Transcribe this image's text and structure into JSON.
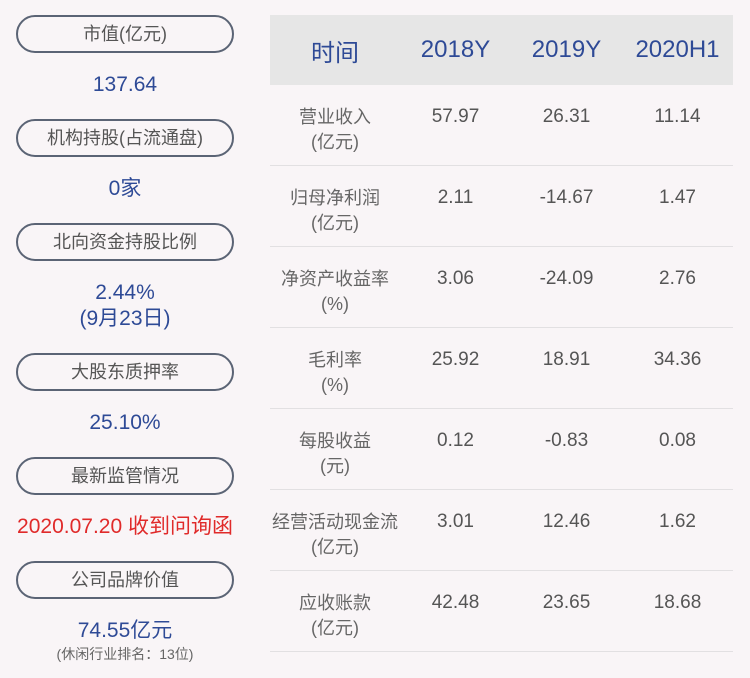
{
  "left": [
    {
      "label": "市值(亿元)",
      "value": "137.64"
    },
    {
      "label": "机构持股(占流通盘)",
      "value": "0家"
    },
    {
      "label": "北向资金持股比例",
      "value": "2.44%",
      "value2": "(9月23日)"
    },
    {
      "label": "大股东质押率",
      "value": "25.10%"
    },
    {
      "label": "最新监管情况",
      "value": "2020.07.20 收到问询函"
    },
    {
      "label": "公司品牌价值",
      "value": "74.55亿元",
      "value2": "(休闲行业排名：13位)"
    }
  ],
  "table": {
    "headers": [
      "时间",
      "2018Y",
      "2019Y",
      "2020H1"
    ],
    "rows": [
      {
        "name": "营业收入",
        "unit": "(亿元)",
        "values": [
          "57.97",
          "26.31",
          "11.14"
        ]
      },
      {
        "name": "归母净利润",
        "unit": "(亿元)",
        "values": [
          "2.11",
          "-14.67",
          "1.47"
        ]
      },
      {
        "name": "净资产收益率",
        "unit": "(%)",
        "values": [
          "3.06",
          "-24.09",
          "2.76"
        ]
      },
      {
        "name": "毛利率",
        "unit": "(%)",
        "values": [
          "25.92",
          "18.91",
          "34.36"
        ]
      },
      {
        "name": "每股收益",
        "unit": "(元)",
        "values": [
          "0.12",
          "-0.83",
          "0.08"
        ]
      },
      {
        "name": "经营活动现金流",
        "unit": "(亿元)",
        "values": [
          "3.01",
          "12.46",
          "1.62"
        ]
      },
      {
        "name": "应收账款",
        "unit": "(亿元)",
        "values": [
          "42.48",
          "23.65",
          "18.68"
        ]
      }
    ]
  },
  "colors": {
    "accent": "#2e4a96",
    "alert": "#e02a2a"
  }
}
